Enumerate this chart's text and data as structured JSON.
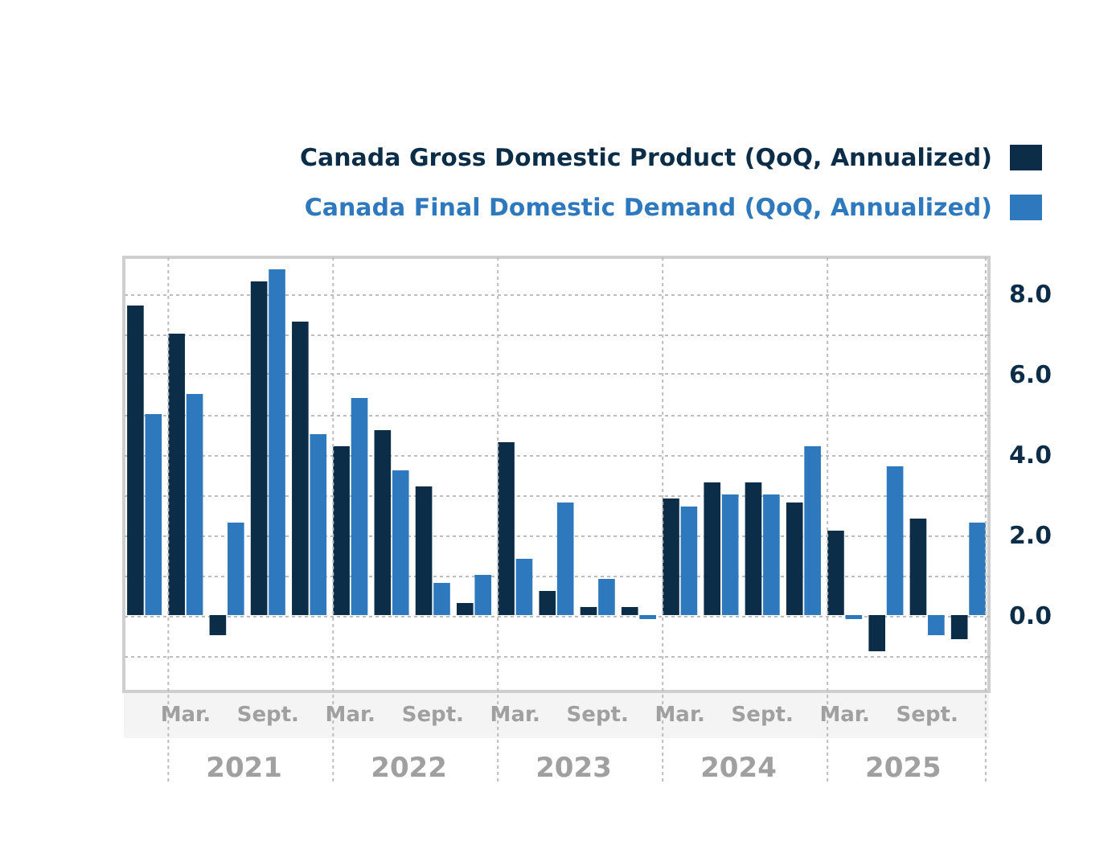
{
  "chart_data": {
    "type": "bar",
    "categories": [
      null,
      "Mar.",
      null,
      "Sept.",
      null,
      "Mar.",
      null,
      "Sept.",
      null,
      "Mar.",
      null,
      "Sept.",
      null,
      "Mar.",
      null,
      "Sept.",
      null,
      "Mar.",
      null,
      "Sept.",
      null
    ],
    "series": [
      {
        "name": "Canada Gross Domestic Product (QoQ, Annualized)",
        "color": "#0c2d48",
        "values": [
          7.7,
          7.0,
          -0.5,
          8.3,
          7.3,
          4.2,
          4.6,
          3.2,
          0.3,
          4.3,
          0.6,
          0.2,
          0.2,
          2.9,
          3.3,
          3.3,
          2.8,
          2.1,
          -0.9,
          2.4,
          -0.6
        ]
      },
      {
        "name": "Canada Final Domestic Demand (QoQ, Annualized)",
        "color": "#2e78bd",
        "values": [
          5.0,
          5.5,
          2.3,
          8.6,
          4.5,
          5.4,
          3.6,
          0.8,
          1.0,
          1.4,
          2.8,
          0.9,
          -0.1,
          2.7,
          3.0,
          3.0,
          4.2,
          -0.1,
          3.7,
          -0.5,
          2.3
        ]
      }
    ],
    "annotations": [
      "2021",
      "2022",
      "2023",
      "2024",
      "2025"
    ],
    "ylim": [
      -1.9,
      8.9
    ],
    "yticks": [
      {
        "value": -1,
        "label": null
      },
      {
        "value": 0,
        "label": "0.0"
      },
      {
        "value": 1,
        "label": null
      },
      {
        "value": 2,
        "label": "2.0"
      },
      {
        "value": 3,
        "label": null
      },
      {
        "value": 4,
        "label": "4.0"
      },
      {
        "value": 5,
        "label": null
      },
      {
        "value": 6,
        "label": "6.0"
      },
      {
        "value": 7,
        "label": null
      },
      {
        "value": 8,
        "label": "8.0"
      }
    ],
    "grid": true,
    "legend": "top right"
  }
}
